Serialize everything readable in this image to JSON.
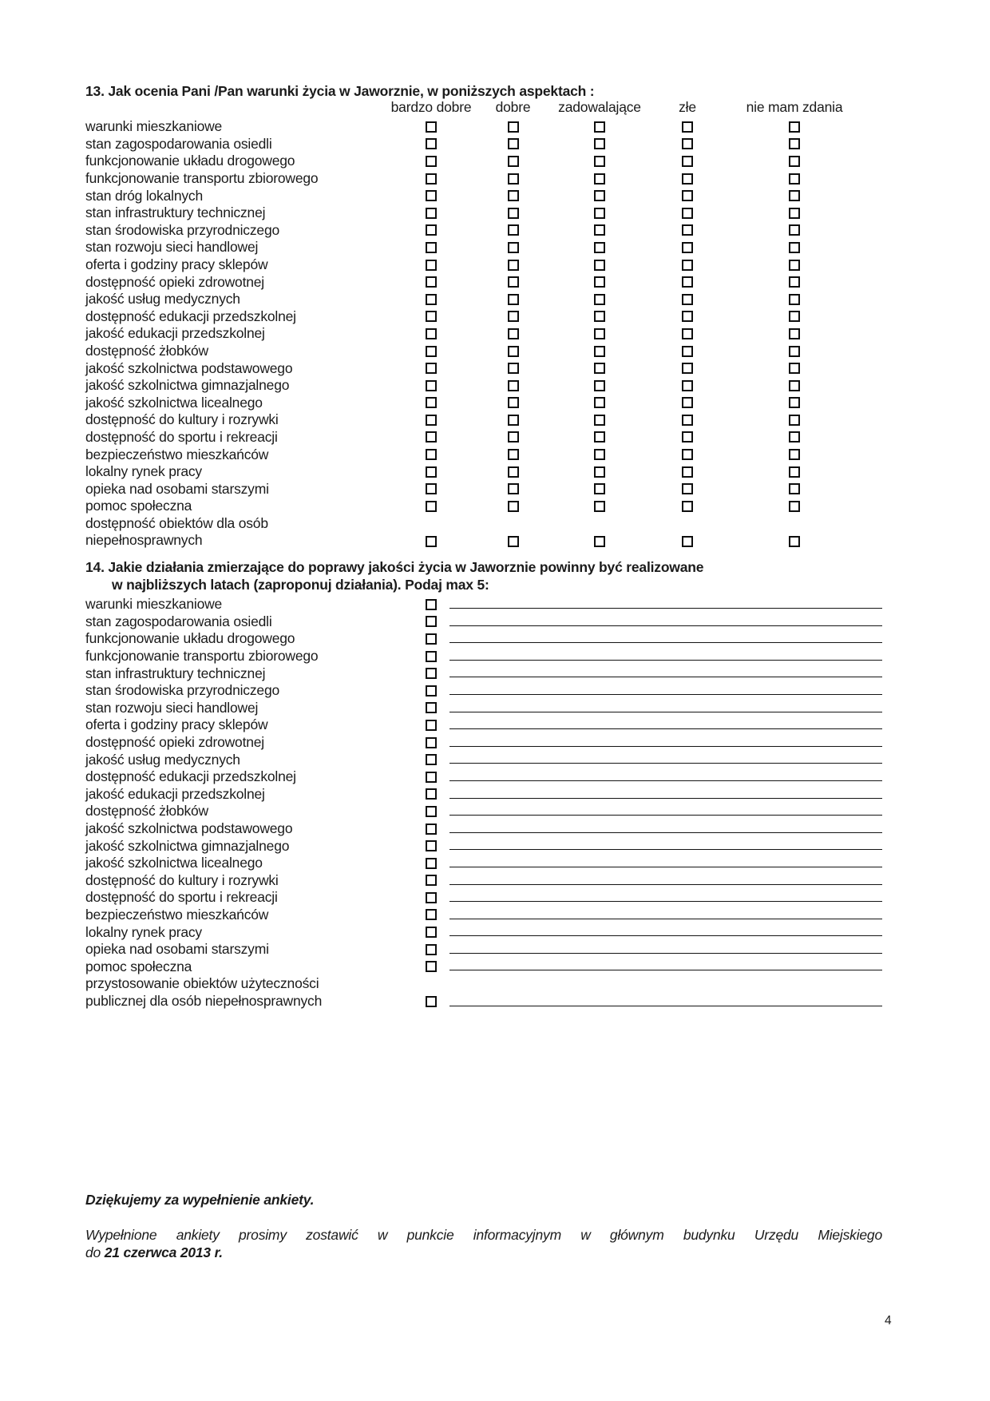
{
  "q13": {
    "title": "13. Jak ocenia Pani /Pan warunki życia w Jaworznie, w poniższych aspektach :",
    "options": [
      "bardzo dobre",
      "dobre",
      "zadowalające",
      "złe",
      "nie mam zdania"
    ],
    "option_names": [
      "bardzo-dobre",
      "dobre",
      "zadowalajace",
      "zle",
      "nie-mam-zdania"
    ],
    "rows": [
      "warunki mieszkaniowe",
      "stan zagospodarowania osiedli",
      "funkcjonowanie układu drogowego",
      "funkcjonowanie transportu zbiorowego",
      "stan dróg lokalnych",
      "stan infrastruktury technicznej",
      "stan środowiska przyrodniczego",
      "stan rozwoju sieci handlowej",
      "oferta i godziny pracy sklepów",
      "dostępność opieki zdrowotnej",
      "jakość usług medycznych",
      "dostępność edukacji przedszkolnej",
      "jakość edukacji przedszkolnej",
      "dostępność żłobków",
      "jakość szkolnictwa podstawowego",
      "jakość szkolnictwa gimnazjalnego",
      "jakość szkolnictwa licealnego",
      "dostępność do kultury i rozrywki",
      "dostępność do sportu i rekreacji",
      "bezpieczeństwo mieszkańców",
      "lokalny rynek pracy",
      "opieka nad osobami starszymi",
      "pomoc społeczna",
      [
        "dostępność obiektów dla osób",
        "niepełnosprawnych"
      ]
    ]
  },
  "q14": {
    "title_line1": "14. Jakie działania zmierzające do poprawy jakości życia w Jaworznie powinny być realizowane",
    "title_line2": "w najbliższych latach (zaproponuj działania). Podaj max 5:",
    "rows": [
      "warunki mieszkaniowe",
      "stan zagospodarowania osiedli",
      "funkcjonowanie układu drogowego",
      "funkcjonowanie transportu zbiorowego",
      "stan infrastruktury technicznej",
      "stan środowiska przyrodniczego",
      "stan rozwoju sieci handlowej",
      "oferta i godziny pracy sklepów",
      "dostępność opieki zdrowotnej",
      "jakość usług medycznych",
      "dostępność edukacji przedszkolnej",
      "jakość edukacji przedszkolnej",
      "dostępność żłobków",
      "jakość szkolnictwa podstawowego",
      "jakość szkolnictwa gimnazjalnego",
      "jakość szkolnictwa licealnego",
      "dostępność do kultury i rozrywki",
      "dostępność do sportu i rekreacji",
      "bezpieczeństwo mieszkańców",
      "lokalny rynek pracy",
      "opieka nad osobami starszymi",
      "pomoc społeczna",
      [
        "przystosowanie obiektów użyteczności",
        "publicznej dla osób niepełnosprawnych"
      ]
    ]
  },
  "footer": {
    "thanks": "Dziękujemy za wypełnienie ankiety.",
    "note_line1": "Wypełnione ankiety prosimy zostawić w punkcie informacyjnym w głównym budynku Urzędu Miejskiego",
    "note_line2_prefix": "do ",
    "note_line2_bold": "21 czerwca 2013 r."
  },
  "page": {
    "number": "4"
  }
}
